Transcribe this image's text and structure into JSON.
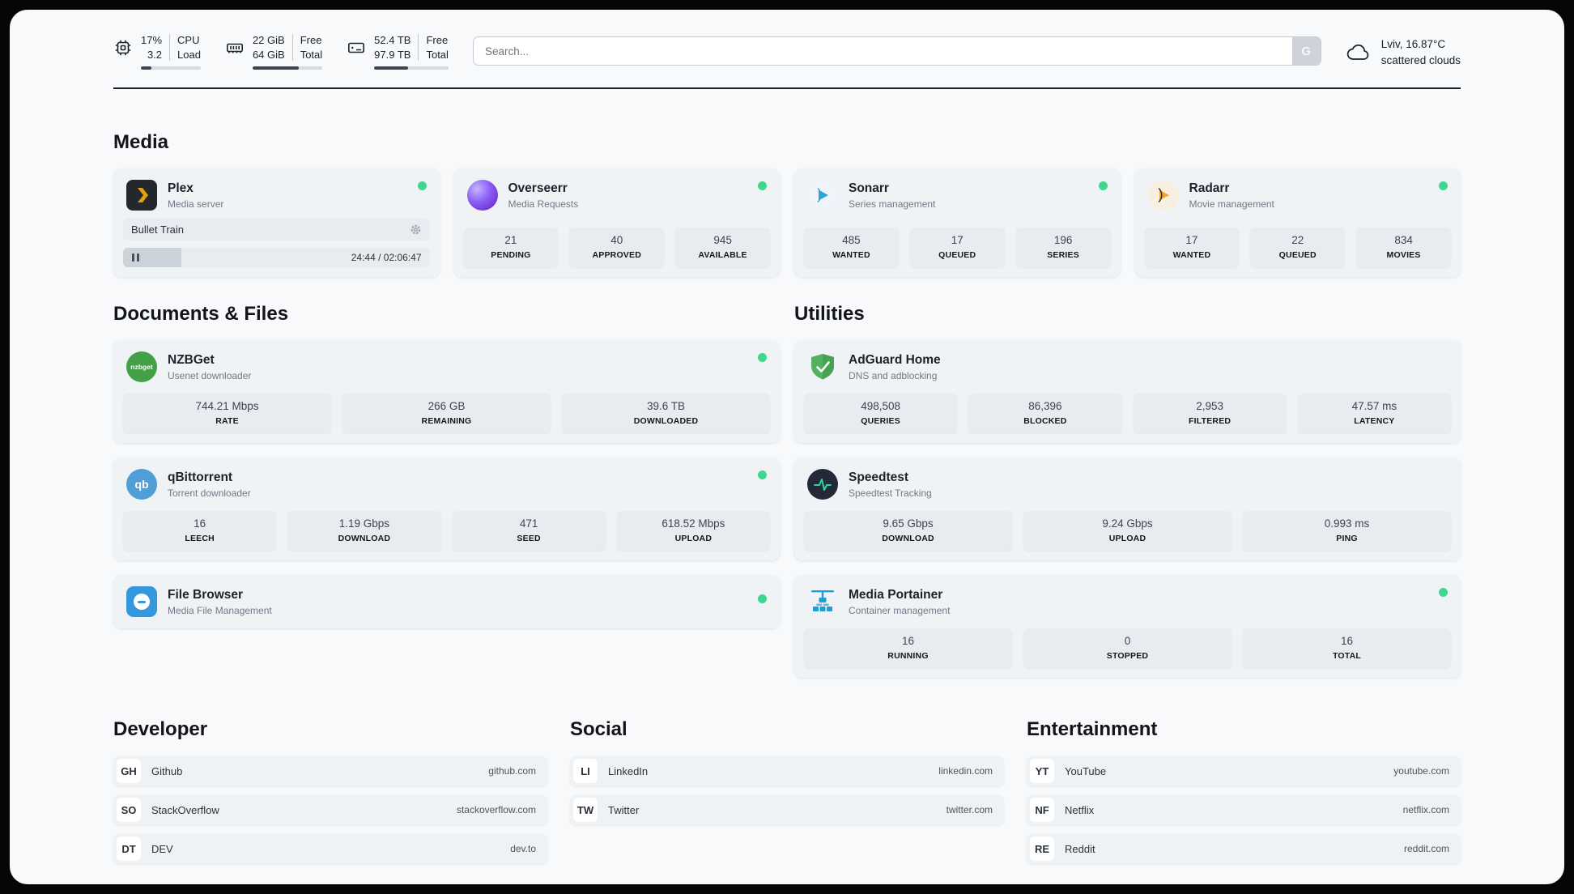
{
  "header": {
    "cpu": {
      "value_top": "17%",
      "value_bottom": "3.2",
      "label_top": "CPU",
      "label_bottom": "Load",
      "percent": 17
    },
    "ram": {
      "value_top": "22 GiB",
      "value_bottom": "64 GiB",
      "label_top": "Free",
      "label_bottom": "Total",
      "percent": 66
    },
    "disk": {
      "value_top": "52.4 TB",
      "value_bottom": "97.9 TB",
      "label_top": "Free",
      "label_bottom": "Total",
      "percent": 46
    },
    "search": {
      "placeholder": "Search...",
      "button_label": "G"
    },
    "weather": {
      "location": "Lviv, 16.87°C",
      "condition": "scattered clouds"
    }
  },
  "media": {
    "title": "Media",
    "plex": {
      "name": "Plex",
      "desc": "Media server",
      "now_playing": "Bullet Train",
      "time": "24:44 / 02:06:47",
      "progress_percent": 19
    },
    "overseerr": {
      "name": "Overseerr",
      "desc": "Media Requests",
      "stats": [
        {
          "value": "21",
          "label": "PENDING"
        },
        {
          "value": "40",
          "label": "APPROVED"
        },
        {
          "value": "945",
          "label": "AVAILABLE"
        }
      ]
    },
    "sonarr": {
      "name": "Sonarr",
      "desc": "Series management",
      "stats": [
        {
          "value": "485",
          "label": "WANTED"
        },
        {
          "value": "17",
          "label": "QUEUED"
        },
        {
          "value": "196",
          "label": "SERIES"
        }
      ]
    },
    "radarr": {
      "name": "Radarr",
      "desc": "Movie management",
      "stats": [
        {
          "value": "17",
          "label": "WANTED"
        },
        {
          "value": "22",
          "label": "QUEUED"
        },
        {
          "value": "834",
          "label": "MOVIES"
        }
      ]
    }
  },
  "documents": {
    "title": "Documents & Files",
    "nzbget": {
      "name": "NZBGet",
      "desc": "Usenet downloader",
      "icon_text": "nzbget",
      "stats": [
        {
          "value": "744.21 Mbps",
          "label": "RATE"
        },
        {
          "value": "266 GB",
          "label": "REMAINING"
        },
        {
          "value": "39.6 TB",
          "label": "DOWNLOADED"
        }
      ]
    },
    "qbittorrent": {
      "name": "qBittorrent",
      "desc": "Torrent downloader",
      "icon_text": "qb",
      "stats": [
        {
          "value": "16",
          "label": "LEECH"
        },
        {
          "value": "1.19 Gbps",
          "label": "DOWNLOAD"
        },
        {
          "value": "471",
          "label": "SEED"
        },
        {
          "value": "618.52 Mbps",
          "label": "UPLOAD"
        }
      ]
    },
    "filebrowser": {
      "name": "File Browser",
      "desc": "Media File Management"
    }
  },
  "utilities": {
    "title": "Utilities",
    "adguard": {
      "name": "AdGuard Home",
      "desc": "DNS and adblocking",
      "stats": [
        {
          "value": "498,508",
          "label": "QUERIES"
        },
        {
          "value": "86,396",
          "label": "BLOCKED"
        },
        {
          "value": "2,953",
          "label": "FILTERED"
        },
        {
          "value": "47.57 ms",
          "label": "LATENCY"
        }
      ]
    },
    "speedtest": {
      "name": "Speedtest",
      "desc": "Speedtest Tracking",
      "stats": [
        {
          "value": "9.65 Gbps",
          "label": "DOWNLOAD"
        },
        {
          "value": "9.24 Gbps",
          "label": "UPLOAD"
        },
        {
          "value": "0.993 ms",
          "label": "PING"
        }
      ]
    },
    "portainer": {
      "name": "Media Portainer",
      "desc": "Container management",
      "stats": [
        {
          "value": "16",
          "label": "RUNNING"
        },
        {
          "value": "0",
          "label": "STOPPED"
        },
        {
          "value": "16",
          "label": "TOTAL"
        }
      ]
    }
  },
  "bookmarks": {
    "developer": {
      "title": "Developer",
      "items": [
        {
          "abbr": "GH",
          "name": "Github",
          "url": "github.com"
        },
        {
          "abbr": "SO",
          "name": "StackOverflow",
          "url": "stackoverflow.com"
        },
        {
          "abbr": "DT",
          "name": "DEV",
          "url": "dev.to"
        }
      ]
    },
    "social": {
      "title": "Social",
      "items": [
        {
          "abbr": "LI",
          "name": "LinkedIn",
          "url": "linkedin.com"
        },
        {
          "abbr": "TW",
          "name": "Twitter",
          "url": "twitter.com"
        }
      ]
    },
    "entertainment": {
      "title": "Entertainment",
      "items": [
        {
          "abbr": "YT",
          "name": "YouTube",
          "url": "youtube.com"
        },
        {
          "abbr": "NF",
          "name": "Netflix",
          "url": "netflix.com"
        },
        {
          "abbr": "RE",
          "name": "Reddit",
          "url": "reddit.com"
        }
      ]
    }
  },
  "colors": {
    "status_green": "#3fd68f",
    "accent_plex": "#e5a00d",
    "accent_sonarr": "#2ba4d8",
    "accent_radarr": "#f5a623"
  }
}
